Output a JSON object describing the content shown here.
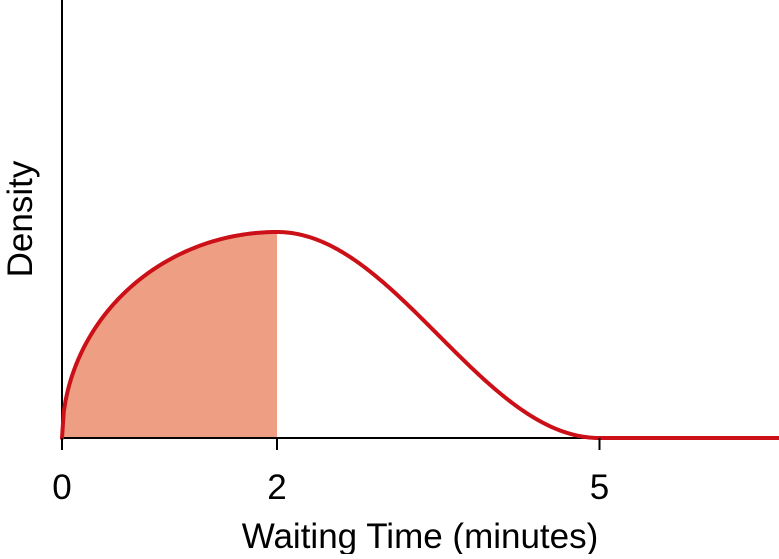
{
  "chart_data": {
    "type": "area",
    "title": "",
    "xlabel": "Waiting Time (minutes)",
    "ylabel": "Density",
    "x_ticks": [
      {
        "value": 0,
        "label": "0"
      },
      {
        "value": 2,
        "label": "2"
      },
      {
        "value": 5,
        "label": "5"
      }
    ],
    "xlim": [
      0,
      6.67
    ],
    "density_peak_at": 2,
    "density_zero_from": 5,
    "shaded_region": [
      0,
      2
    ],
    "curve_color": "#cc1017",
    "fill_color": "#ee9e82",
    "grid": false,
    "legend": "none"
  }
}
